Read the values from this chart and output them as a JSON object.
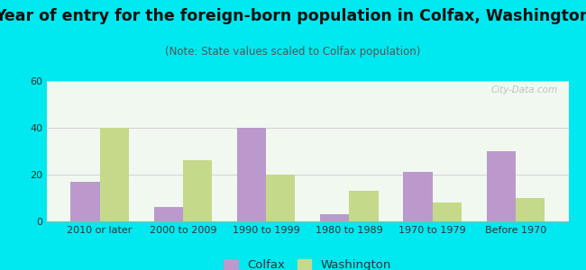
{
  "title": "Year of entry for the foreign-born population in Colfax, Washington",
  "subtitle": "(Note: State values scaled to Colfax population)",
  "categories": [
    "2010 or later",
    "2000 to 2009",
    "1990 to 1999",
    "1980 to 1989",
    "1970 to 1979",
    "Before 1970"
  ],
  "colfax_values": [
    17,
    6,
    40,
    3,
    21,
    30
  ],
  "washington_values": [
    40,
    26,
    20,
    13,
    8,
    10
  ],
  "colfax_color": "#bb99cc",
  "washington_color": "#c5d98a",
  "background_outer": "#00e8f0",
  "background_inner_top": "#e8f5e8",
  "background_inner_bottom": "#f5fff8",
  "ylim": [
    0,
    60
  ],
  "yticks": [
    0,
    20,
    40,
    60
  ],
  "bar_width": 0.35,
  "title_fontsize": 12.5,
  "subtitle_fontsize": 8.5,
  "legend_fontsize": 9.5,
  "tick_fontsize": 8,
  "watermark_text": "City-Data.com"
}
